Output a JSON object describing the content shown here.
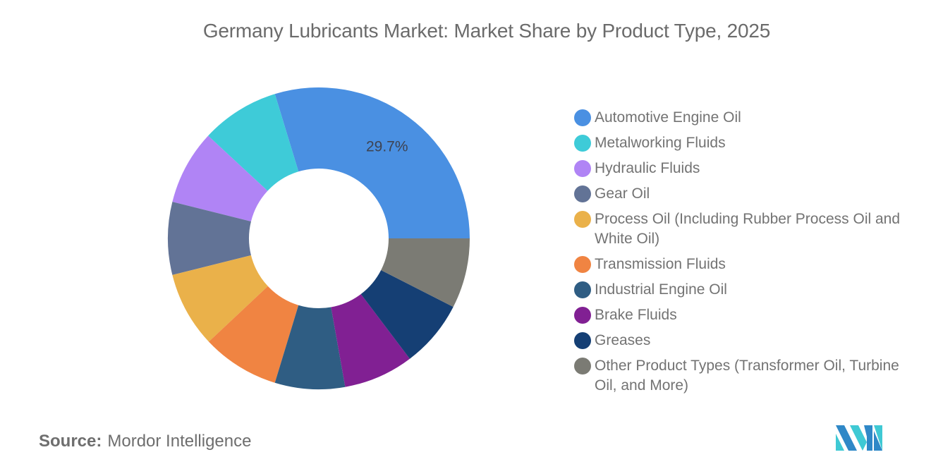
{
  "title": "Germany Lubricants Market: Market Share by Product Type, 2025",
  "source": {
    "label": "Source:",
    "value": "Mordor Intelligence"
  },
  "logo": {
    "name": "mordor-intelligence-logo",
    "colors": [
      "#2f88c7",
      "#3fc9d4"
    ]
  },
  "legend": [
    {
      "label": "Automotive Engine Oil",
      "color": "#4a90e2"
    },
    {
      "label": "Metalworking Fluids",
      "color": "#3ecbd8"
    },
    {
      "label": "Hydraulic Fluids",
      "color": "#b084f5"
    },
    {
      "label": "Gear Oil",
      "color": "#627396"
    },
    {
      "label": "Process Oil (Including Rubber Process Oil and White Oil)",
      "color": "#eab14a"
    },
    {
      "label": "Transmission Fluids",
      "color": "#f08442"
    },
    {
      "label": "Industrial Engine Oil",
      "color": "#2f5d83"
    },
    {
      "label": "Brake Fluids",
      "color": "#812093"
    },
    {
      "label": "Greases",
      "color": "#153f74"
    },
    {
      "label": "Other Product Types (Transformer Oil, Turbine Oil, and More)",
      "color": "#7b7b74"
    }
  ],
  "chart_data": {
    "type": "pie",
    "subtype": "donut",
    "title": "Germany Lubricants Market: Market Share by Product Type, 2025",
    "categories": [
      "Automotive Engine Oil",
      "Metalworking Fluids",
      "Hydraulic Fluids",
      "Gear Oil",
      "Process Oil (Including Rubber Process Oil and White Oil)",
      "Transmission Fluids",
      "Industrial Engine Oil",
      "Brake Fluids",
      "Greases",
      "Other Product Types (Transformer Oil, Turbine Oil, and More)"
    ],
    "values": [
      29.7,
      8.4,
      8.0,
      7.8,
      8.1,
      8.3,
      7.5,
      7.5,
      7.2,
      7.5
    ],
    "colors": [
      "#4a90e2",
      "#3ecbd8",
      "#b084f5",
      "#627396",
      "#eab14a",
      "#f08442",
      "#2f5d83",
      "#812093",
      "#153f74",
      "#7b7b74"
    ],
    "data_labels": [
      {
        "category": "Automotive Engine Oil",
        "text": "29.7%"
      }
    ],
    "unit": "%",
    "start_angle_deg": 0,
    "direction": "counterclockwise",
    "center": [
      452,
      338
    ],
    "outer_radius": 214,
    "inner_radius": 99,
    "legend_position": "right"
  }
}
